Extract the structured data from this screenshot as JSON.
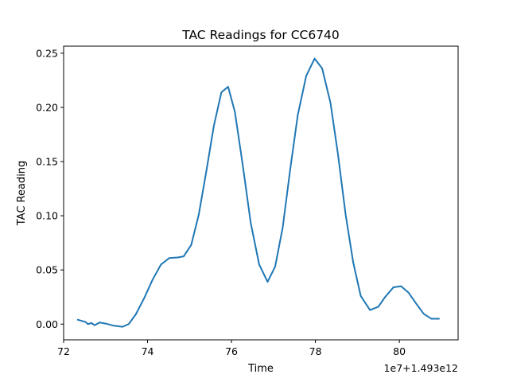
{
  "chart_data": {
    "type": "line",
    "title": "TAC Readings for CC6740",
    "xlabel": "Time",
    "ylabel": "TAC Reading",
    "x_offset_label": "1e7+1.493e12",
    "xlim": [
      72.0,
      81.4
    ],
    "ylim": [
      -0.0145,
      0.2565
    ],
    "x_ticks": [
      72,
      74,
      76,
      78,
      80
    ],
    "y_ticks": [
      0.0,
      0.05,
      0.1,
      0.15,
      0.2,
      0.25
    ],
    "x_tick_labels": [
      "72",
      "74",
      "76",
      "78",
      "80"
    ],
    "y_tick_labels": [
      "0.00",
      "0.05",
      "0.10",
      "0.15",
      "0.20",
      "0.25"
    ],
    "grid": false,
    "legend": "none",
    "series": [
      {
        "color": "#1f77b4",
        "x": [
          72.34,
          72.52,
          72.58,
          72.66,
          72.74,
          72.86,
          73.0,
          73.2,
          73.4,
          73.55,
          73.72,
          73.92,
          74.12,
          74.32,
          74.52,
          74.72,
          74.86,
          75.04,
          75.22,
          75.4,
          75.58,
          75.76,
          75.92,
          76.08,
          76.26,
          76.46,
          76.66,
          76.86,
          77.04,
          77.22,
          77.4,
          77.58,
          77.78,
          77.98,
          78.16,
          78.36,
          78.54,
          78.72,
          78.9,
          79.08,
          79.3,
          79.5,
          79.66,
          79.86,
          80.04,
          80.22,
          80.4,
          80.58,
          80.76,
          80.94
        ],
        "y": [
          0.004,
          0.002,
          0.0,
          0.001,
          -0.001,
          0.0015,
          0.0005,
          -0.0015,
          -0.0025,
          0.0,
          0.009,
          0.024,
          0.041,
          0.055,
          0.061,
          0.0615,
          0.0625,
          0.073,
          0.101,
          0.141,
          0.183,
          0.214,
          0.219,
          0.196,
          0.149,
          0.093,
          0.055,
          0.039,
          0.053,
          0.089,
          0.143,
          0.193,
          0.229,
          0.245,
          0.236,
          0.204,
          0.156,
          0.101,
          0.057,
          0.026,
          0.013,
          0.016,
          0.025,
          0.034,
          0.035,
          0.029,
          0.019,
          0.0095,
          0.005,
          0.005
        ]
      }
    ]
  }
}
